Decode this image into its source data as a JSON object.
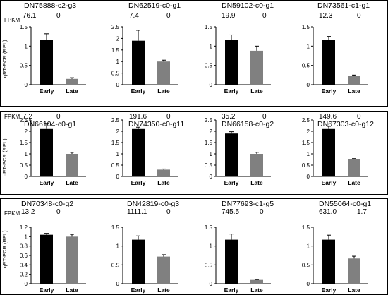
{
  "fpkm_label": "FPKM",
  "y_axis_label": "qRT-PCR (REL)",
  "rows": [
    {
      "panels": [
        {
          "gene": "DN75888-c2-g3",
          "fpkm_early": "76.1",
          "fpkm_late": "0"
        },
        {
          "gene": "DN62519-c0-g1",
          "fpkm_early": "7.4",
          "fpkm_late": "0"
        },
        {
          "gene": "DN59102-c0-g1",
          "fpkm_early": "19.9",
          "fpkm_late": "0"
        },
        {
          "gene": "DN73561-c1-g1",
          "fpkm_early": "12.3",
          "fpkm_late": "0"
        }
      ]
    },
    {
      "panels": [
        {
          "gene": "DN66104-c0-g1",
          "fpkm_early": "7.2",
          "fpkm_late": "0"
        },
        {
          "gene": "DN74350-c0-g11",
          "fpkm_early": "191.6",
          "fpkm_late": "0"
        },
        {
          "gene": "DN66158-c0-g2",
          "fpkm_early": "35.2",
          "fpkm_late": "0"
        },
        {
          "gene": "DN67303-c0-g12",
          "fpkm_early": "149.6",
          "fpkm_late": "0"
        }
      ]
    },
    {
      "panels": [
        {
          "gene": "DN70348-c0-g2",
          "fpkm_early": "13.2",
          "fpkm_late": "0"
        },
        {
          "gene": "DN42819-c0-g3",
          "fpkm_early": "1111.1",
          "fpkm_late": "0"
        },
        {
          "gene": "DN77693-c1-g5",
          "fpkm_early": "745.5",
          "fpkm_late": "0"
        },
        {
          "gene": "DN55064-c0-g1",
          "fpkm_early": "631.0",
          "fpkm_late": "1.7"
        }
      ]
    }
  ],
  "chart_data": [
    {
      "type": "bar",
      "gene": "DN75888-c2-g3",
      "categories": [
        "Early",
        "Late"
      ],
      "values": [
        1.17,
        0.15
      ],
      "errors": [
        0.15,
        0.03
      ],
      "colors": [
        "#000000",
        "#808080"
      ],
      "ylim": [
        0,
        1.5
      ],
      "yticks": [
        "0",
        "0.5",
        "1",
        "1.5"
      ]
    },
    {
      "type": "bar",
      "gene": "DN62519-c0-g1",
      "categories": [
        "Early",
        "Late"
      ],
      "values": [
        1.9,
        1.0
      ],
      "errors": [
        0.45,
        0.06
      ],
      "colors": [
        "#000000",
        "#808080"
      ],
      "ylim": [
        0,
        2.5
      ],
      "yticks": [
        "0",
        "0.5",
        "1",
        "1.5",
        "2",
        "2.5"
      ]
    },
    {
      "type": "bar",
      "gene": "DN59102-c0-g1",
      "categories": [
        "Early",
        "Late"
      ],
      "values": [
        1.17,
        0.88
      ],
      "errors": [
        0.12,
        0.12
      ],
      "colors": [
        "#000000",
        "#808080"
      ],
      "ylim": [
        0,
        1.5
      ],
      "yticks": [
        "0",
        "0.5",
        "1",
        "1.5"
      ]
    },
    {
      "type": "bar",
      "gene": "DN73561-c1-g1",
      "categories": [
        "Early",
        "Late"
      ],
      "values": [
        1.17,
        0.22
      ],
      "errors": [
        0.08,
        0.03
      ],
      "colors": [
        "#000000",
        "#808080"
      ],
      "ylim": [
        0,
        1.5
      ],
      "yticks": [
        "0",
        "0.5",
        "1",
        "1.5"
      ]
    },
    {
      "type": "bar",
      "gene": "DN66104-c0-g1",
      "categories": [
        "Early",
        "Late"
      ],
      "values": [
        2.1,
        1.0
      ],
      "errors": [
        0.25,
        0.07
      ],
      "colors": [
        "#000000",
        "#808080"
      ],
      "ylim": [
        0,
        2.5
      ],
      "yticks": [
        "0",
        "0.5",
        "1",
        "1.5",
        "2",
        "2.5"
      ]
    },
    {
      "type": "bar",
      "gene": "DN74350-c0-g11",
      "categories": [
        "Early",
        "Late"
      ],
      "values": [
        2.1,
        0.3
      ],
      "errors": [
        0.08,
        0.03
      ],
      "colors": [
        "#000000",
        "#808080"
      ],
      "ylim": [
        0,
        2.5
      ],
      "yticks": [
        "0",
        "0.5",
        "1",
        "1.5",
        "2",
        "2.5"
      ]
    },
    {
      "type": "bar",
      "gene": "DN66158-c0-g2",
      "categories": [
        "Early",
        "Late"
      ],
      "values": [
        1.9,
        1.0
      ],
      "errors": [
        0.08,
        0.07
      ],
      "colors": [
        "#000000",
        "#808080"
      ],
      "ylim": [
        0,
        2.5
      ],
      "yticks": [
        "0",
        "0.5",
        "1",
        "1.5",
        "2",
        "2.5"
      ]
    },
    {
      "type": "bar",
      "gene": "DN67303-c0-g12",
      "categories": [
        "Early",
        "Late"
      ],
      "values": [
        2.1,
        0.75
      ],
      "errors": [
        0.12,
        0.04
      ],
      "colors": [
        "#000000",
        "#808080"
      ],
      "ylim": [
        0,
        2.5
      ],
      "yticks": [
        "0",
        "0.5",
        "1",
        "1.5",
        "2",
        "2.5"
      ]
    },
    {
      "type": "bar",
      "gene": "DN70348-c0-g2",
      "categories": [
        "Early",
        "Late"
      ],
      "values": [
        1.04,
        1.0
      ],
      "errors": [
        0.03,
        0.05
      ],
      "colors": [
        "#000000",
        "#808080"
      ],
      "ylim": [
        0,
        1.2
      ],
      "yticks": [
        "0",
        "0.2",
        "0.4",
        "0.6",
        "0.8",
        "1",
        "1.2"
      ]
    },
    {
      "type": "bar",
      "gene": "DN42819-c0-g3",
      "categories": [
        "Early",
        "Late"
      ],
      "values": [
        1.17,
        0.72
      ],
      "errors": [
        0.1,
        0.05
      ],
      "colors": [
        "#000000",
        "#808080"
      ],
      "ylim": [
        0,
        1.5
      ],
      "yticks": [
        "0",
        "0.5",
        "1",
        "1.5"
      ]
    },
    {
      "type": "bar",
      "gene": "DN77693-c1-g5",
      "categories": [
        "Early",
        "Late"
      ],
      "values": [
        1.17,
        0.1
      ],
      "errors": [
        0.15,
        0.01
      ],
      "colors": [
        "#000000",
        "#808080"
      ],
      "ylim": [
        0,
        1.5
      ],
      "yticks": [
        "0",
        "0.5",
        "1",
        "1.5"
      ]
    },
    {
      "type": "bar",
      "gene": "DN55064-c0-g1",
      "categories": [
        "Early",
        "Late"
      ],
      "values": [
        1.17,
        0.67
      ],
      "errors": [
        0.12,
        0.06
      ],
      "colors": [
        "#000000",
        "#808080"
      ],
      "ylim": [
        0,
        1.5
      ],
      "yticks": [
        "0",
        "0.5",
        "1",
        "1.5"
      ]
    }
  ]
}
